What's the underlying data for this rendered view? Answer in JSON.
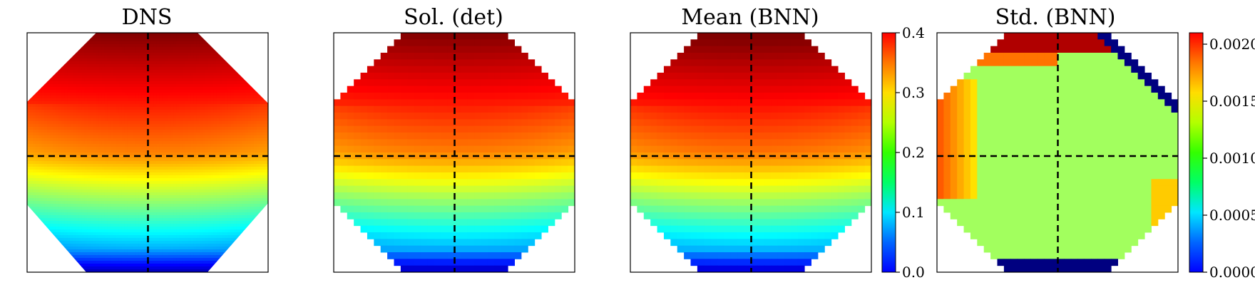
{
  "chart_data": [
    {
      "type": "heatmap",
      "title": "DNS",
      "field": "smooth",
      "grid": false,
      "crosshair": "dashed-black",
      "colormap": "jet",
      "vmin": 0.0,
      "vmax": 0.4,
      "value_model": "mean field: ~0.40 at top edge, ~0.30 just above the horizontal midline, ~0.20 below midline, ~0.10 near lower boundary, ~0.02 at bottom-center; slightly lower toward left/right mid-sides"
    },
    {
      "type": "heatmap",
      "title": "Sol. (det)",
      "field": "pixelated",
      "grid": false,
      "crosshair": "dashed-black",
      "colormap": "jet",
      "vmin": 0.0,
      "vmax": 0.4,
      "value_model": "same mean field as DNS, sampled on a coarse pixel grid"
    },
    {
      "type": "heatmap",
      "title": "Mean (BNN)",
      "field": "pixelated",
      "grid": false,
      "crosshair": "dashed-black",
      "colormap": "jet",
      "vmin": 0.0,
      "vmax": 0.4,
      "colorbar": {
        "ticks": [
          "0.0",
          "0.1",
          "0.2",
          "0.3",
          "0.4"
        ],
        "tick_values": [
          0.0,
          0.1,
          0.2,
          0.3,
          0.4
        ]
      }
    },
    {
      "type": "heatmap",
      "title": "Std. (BNN)",
      "field": "pixelated-std",
      "grid": false,
      "crosshair": "dashed-black",
      "colormap": "jet",
      "vmin": 0.0,
      "vmax": 0.0021,
      "value_model": "mostly ~0.0011-0.0012 (green); ~0.0017 on left side; ~0.0020 at top strip; ~0.0014 lower right; 0.0000 along upper-right diagonal boundary and bottom strip",
      "colorbar": {
        "ticks": [
          "0.0000",
          "0.0005",
          "0.0010",
          "0.0015",
          "0.0020"
        ],
        "tick_values": [
          0.0,
          0.0005,
          0.001,
          0.0015,
          0.002
        ]
      }
    }
  ]
}
